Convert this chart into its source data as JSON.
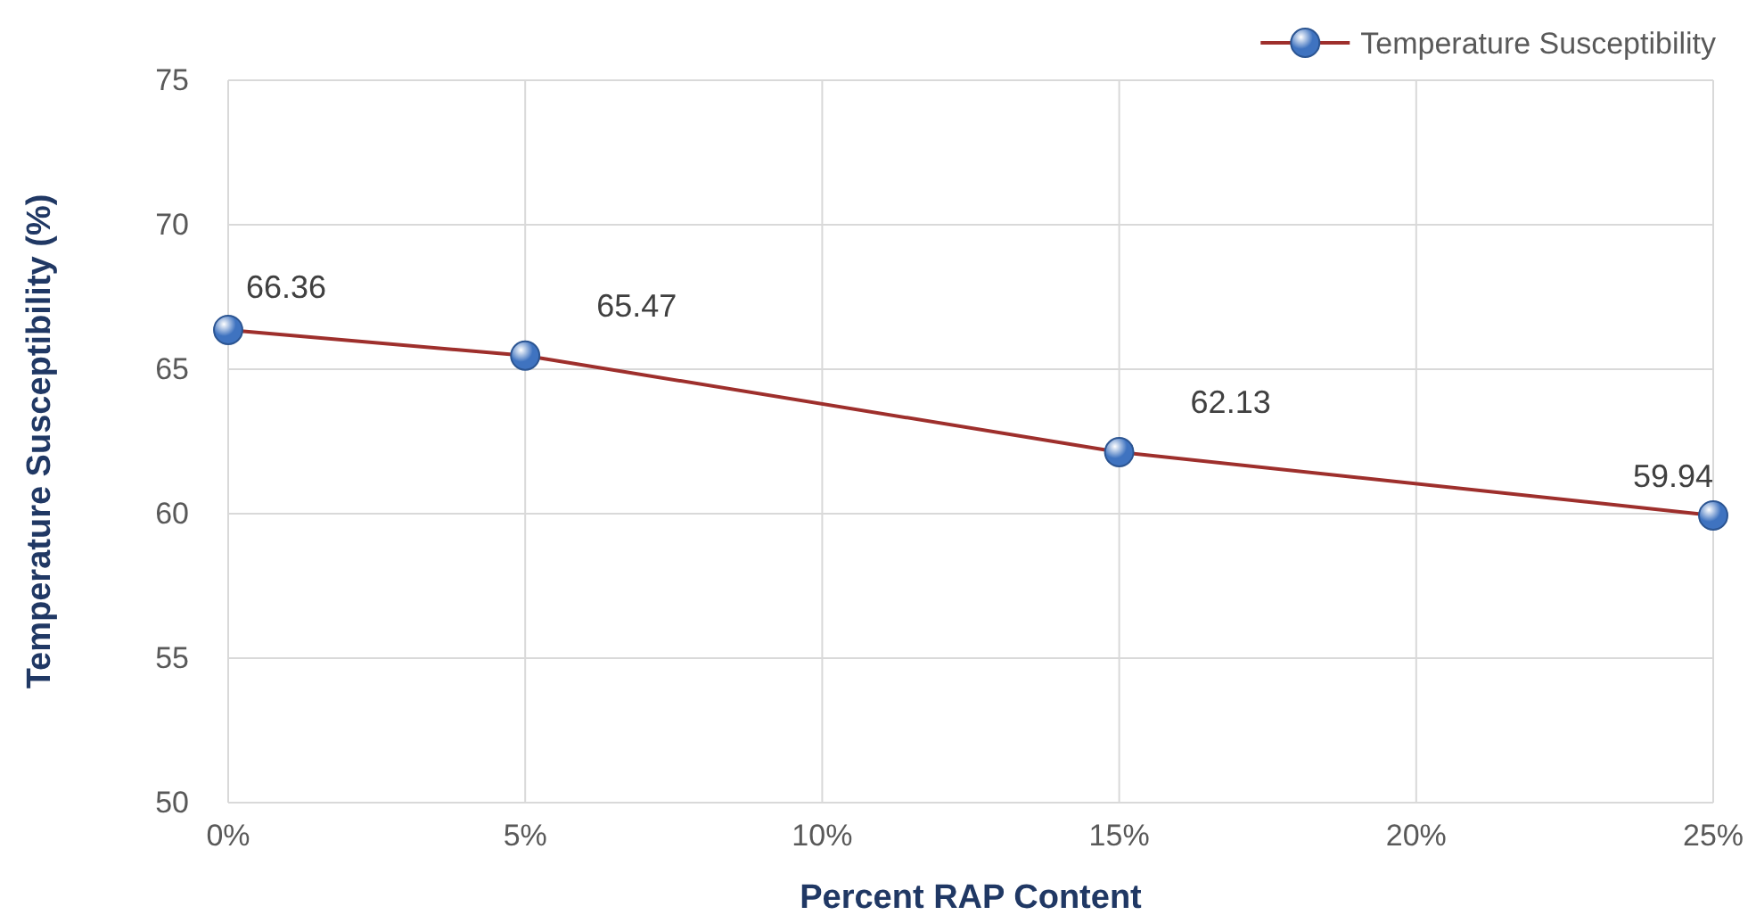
{
  "chart_data": {
    "type": "line",
    "xlabel": "Percent RAP Content",
    "ylabel": "Temperature Susceptibility (%)",
    "x": [
      0,
      5,
      15,
      25
    ],
    "series": [
      {
        "name": "Temperature Susceptibility",
        "color": "#9e2f2c",
        "values": [
          66.36,
          65.47,
          62.13,
          59.94
        ]
      }
    ],
    "xlim": [
      0,
      25
    ],
    "xticks": [
      {
        "value": 0,
        "label": "0%"
      },
      {
        "value": 5,
        "label": "5%"
      },
      {
        "value": 10,
        "label": "10%"
      },
      {
        "value": 15,
        "label": "15%"
      },
      {
        "value": 20,
        "label": "20%"
      },
      {
        "value": 25,
        "label": "25%"
      }
    ],
    "ylim": [
      50,
      75
    ],
    "yticks": [
      50,
      55,
      60,
      65,
      70,
      75
    ],
    "grid": true,
    "legend": "top right",
    "marker": "circle",
    "line_style": "solid",
    "data_labels": true
  }
}
